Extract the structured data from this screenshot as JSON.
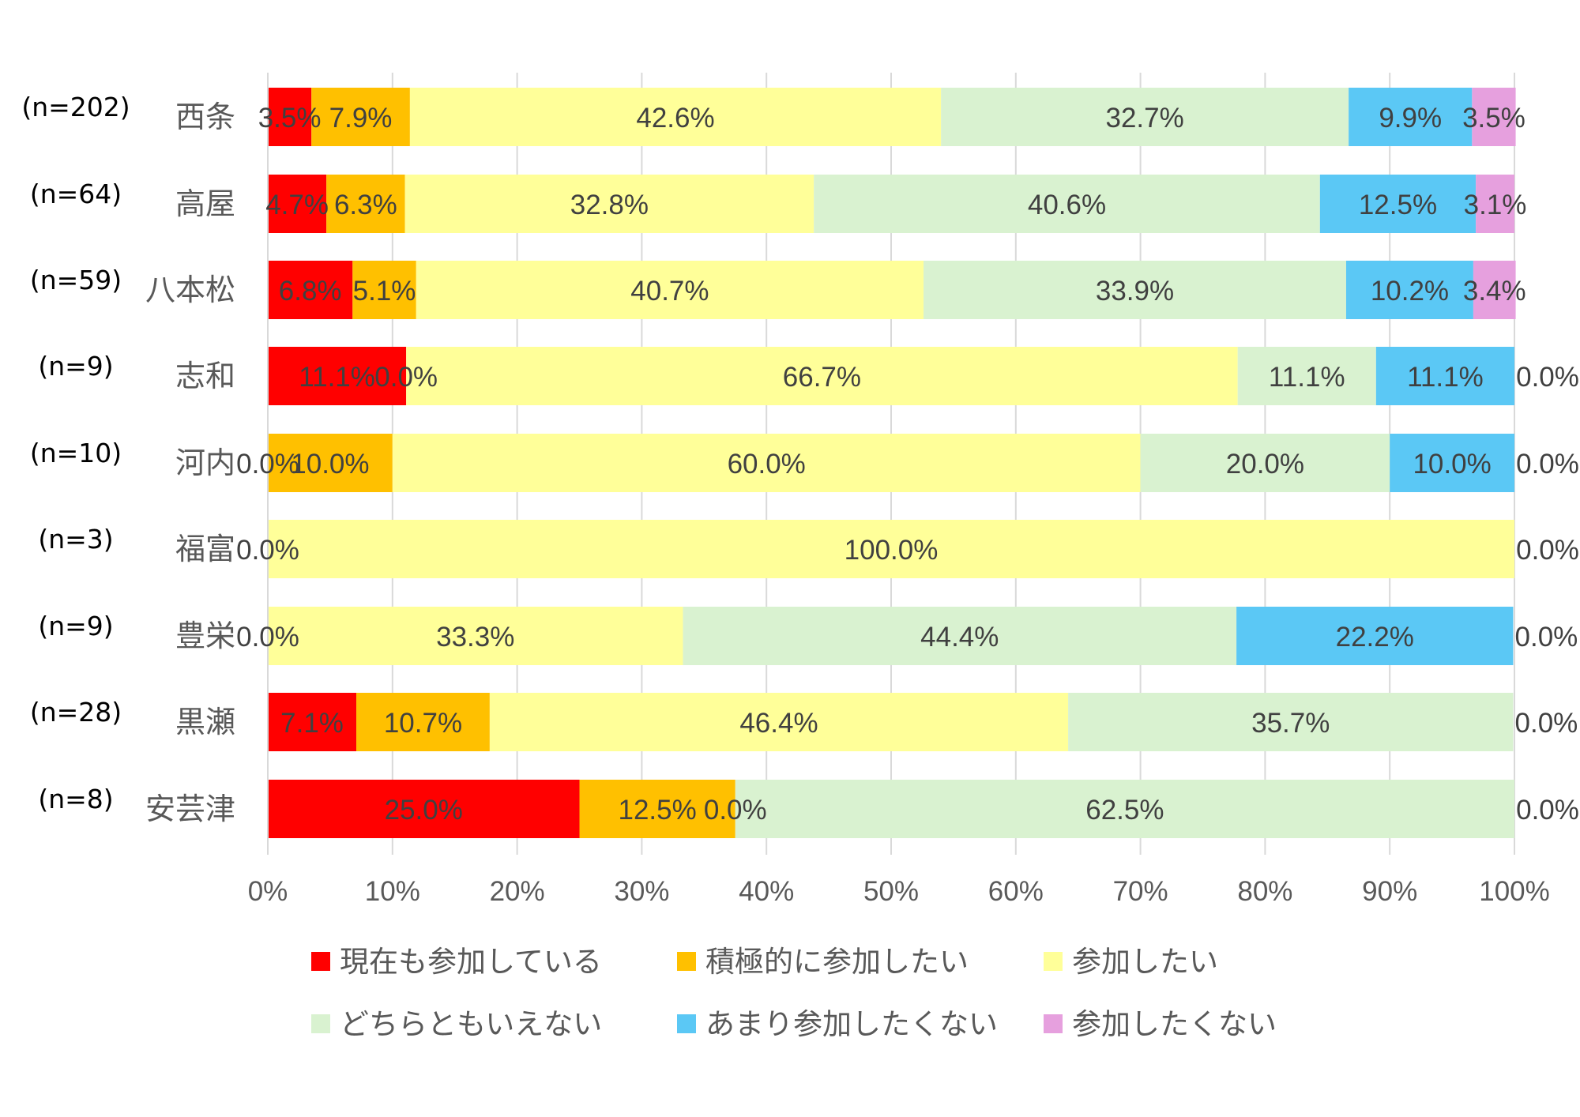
{
  "chart_data": {
    "type": "bar",
    "orientation": "horizontal",
    "stacked": "percent",
    "title": "",
    "xlabel": "",
    "ylabel": "",
    "xlim": [
      0,
      100
    ],
    "x_ticks": [
      "0%",
      "10%",
      "20%",
      "30%",
      "40%",
      "50%",
      "60%",
      "70%",
      "80%",
      "90%",
      "100%"
    ],
    "grid": true,
    "legend_position": "bottom",
    "categories": [
      "西条",
      "高屋",
      "八本松",
      "志和",
      "河内",
      "福富",
      "豊栄",
      "黒瀬",
      "安芸津"
    ],
    "sample_sizes": [
      "(n=202)",
      "(n=64)",
      "(n=59)",
      "(n=9)",
      "(n=10)",
      "(n=3)",
      "(n=9)",
      "(n=28)",
      "(n=8)"
    ],
    "series": [
      {
        "name": "現在も参加している",
        "color": "#ff0000",
        "values": [
          3.5,
          4.7,
          6.8,
          11.1,
          0.0,
          0.0,
          0.0,
          7.1,
          25.0
        ],
        "labels": [
          "3.5%",
          "4.7%",
          "6.8%",
          "11.1%",
          "0.0%",
          "0.0%",
          "0.0%",
          "7.1%",
          "25.0%"
        ]
      },
      {
        "name": "積極的に参加したい",
        "color": "#ffc000",
        "values": [
          7.9,
          6.3,
          5.1,
          0.0,
          10.0,
          0.0,
          0.0,
          10.7,
          12.5
        ],
        "labels": [
          "7.9%",
          "6.3%",
          "5.1%",
          "0.0%",
          "10.0%",
          "",
          "",
          "10.7%",
          "12.5%"
        ]
      },
      {
        "name": "参加したい",
        "color": "#ffff99",
        "values": [
          42.6,
          32.8,
          40.7,
          66.7,
          60.0,
          100.0,
          33.3,
          46.4,
          0.0
        ],
        "labels": [
          "42.6%",
          "32.8%",
          "40.7%",
          "66.7%",
          "60.0%",
          "100.0%",
          "33.3%",
          "46.4%",
          "0.0%"
        ]
      },
      {
        "name": "どちらともいえない",
        "color": "#d9f2d0",
        "values": [
          32.7,
          40.6,
          33.9,
          11.1,
          20.0,
          0.0,
          44.4,
          35.7,
          62.5
        ],
        "labels": [
          "32.7%",
          "40.6%",
          "33.9%",
          "11.1%",
          "20.0%",
          "",
          "44.4%",
          "35.7%",
          "62.5%"
        ]
      },
      {
        "name": "あまり参加したくない",
        "color": "#5bc8f5",
        "values": [
          9.9,
          12.5,
          10.2,
          11.1,
          10.0,
          0.0,
          22.2,
          0.0,
          0.0
        ],
        "labels": [
          "9.9%",
          "12.5%",
          "10.2%",
          "11.1%",
          "10.0%",
          "",
          "22.2%",
          "",
          ""
        ]
      },
      {
        "name": "参加したくない",
        "color": "#e6a0de",
        "values": [
          3.5,
          3.1,
          3.4,
          0.0,
          0.0,
          0.0,
          0.0,
          0.0,
          0.0
        ],
        "labels": [
          "3.5%",
          "3.1%",
          "3.4%",
          "0.0%",
          "0.0%",
          "0.0%",
          "0.0%",
          "0.0%",
          "0.0%"
        ]
      }
    ]
  }
}
